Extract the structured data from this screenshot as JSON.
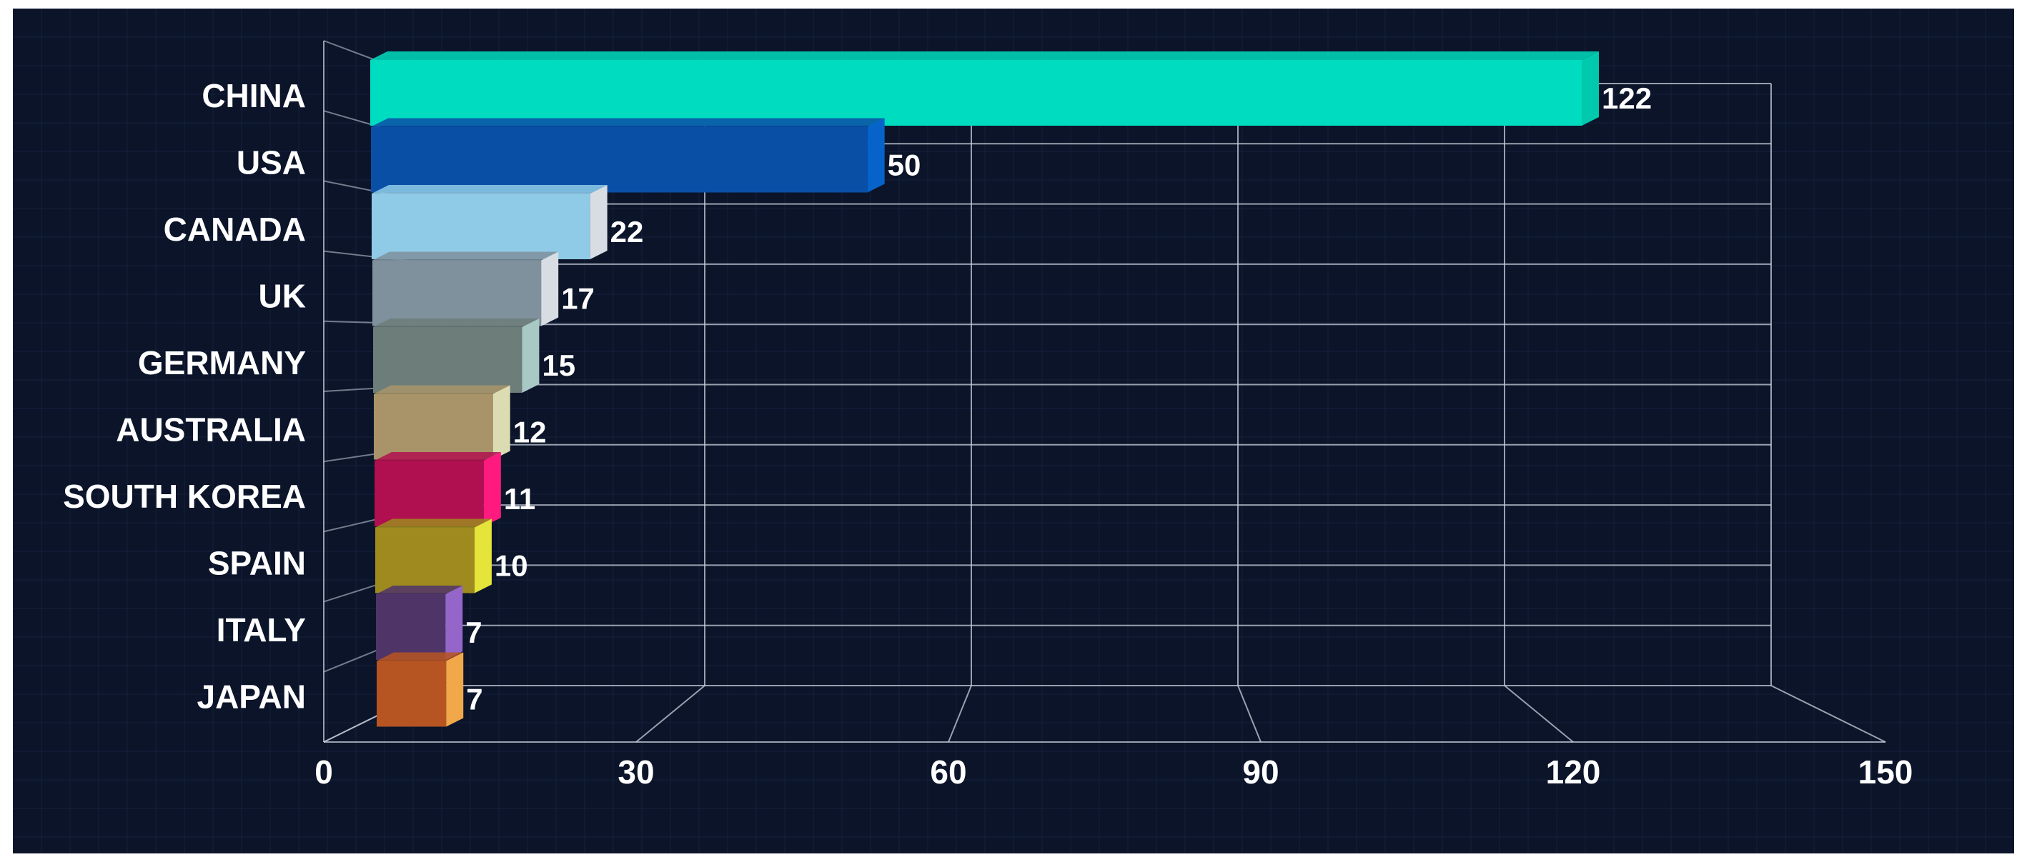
{
  "chart_data": {
    "type": "bar",
    "orientation": "horizontal",
    "style": "3d",
    "categories": [
      "CHINA",
      "USA",
      "CANADA",
      "UK",
      "GERMANY",
      "AUSTRALIA",
      "SOUTH KOREA",
      "SPAIN",
      "ITALY",
      "JAPAN"
    ],
    "values": [
      122,
      50,
      22,
      17,
      15,
      12,
      11,
      10,
      7,
      7
    ],
    "data_labels": [
      "122",
      "50",
      "22",
      "17",
      "15",
      "12",
      "11",
      "10",
      "7",
      "7"
    ],
    "colors": [
      "#00dcbf",
      "#0a4fa6",
      "#8fcbe6",
      "#7f919c",
      "#6c7d7a",
      "#a89468",
      "#b0104f",
      "#9e8a1e",
      "#4f3468",
      "#b75522"
    ],
    "side_colors": [
      "#00c9ad",
      "#0563c9",
      "#d7dde2",
      "#d7dde2",
      "#a9c9c4",
      "#dcdcb2",
      "#ff1a80",
      "#e4e43a",
      "#9466c9",
      "#f0a84a"
    ],
    "x_ticks": [
      "0",
      "30",
      "60",
      "90",
      "120",
      "150"
    ],
    "xlim": [
      0,
      150
    ],
    "grid": true,
    "background": "#0b1429"
  }
}
